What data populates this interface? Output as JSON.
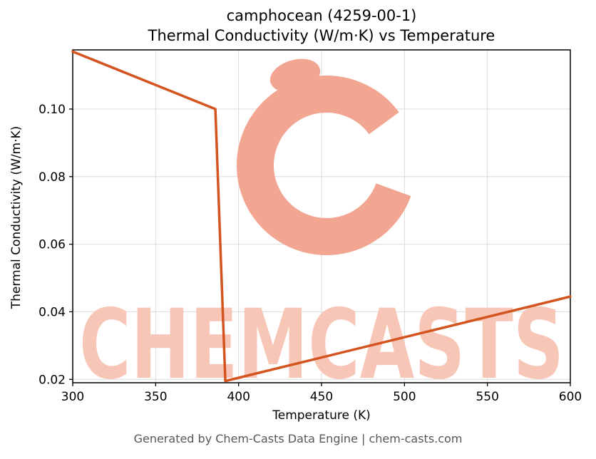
{
  "page": {
    "background": "#ffffff"
  },
  "footer": {
    "text": "Generated by Chem-Casts Data Engine | chem-casts.com"
  },
  "watermark": {
    "text": "CHEMCASTS",
    "logo": "c-swirl-logo",
    "text_color": "#f7c6b7",
    "logo_color": "#f2a691"
  },
  "chart_data": {
    "type": "line",
    "title_line1": "camphocean (4259-00-1)",
    "title_line2": "Thermal Conductivity (W/m·K) vs Temperature",
    "xlabel": "Temperature (K)",
    "ylabel": "Thermal Conductivity (W/m·K)",
    "xlim": [
      300,
      600
    ],
    "ylim": [
      0.019,
      0.1175
    ],
    "xticks": [
      300,
      350,
      400,
      450,
      500,
      550,
      600
    ],
    "yticks": [
      0.02,
      0.04,
      0.06,
      0.08,
      0.1
    ],
    "ytick_labels": [
      "0.02",
      "0.04",
      "0.06",
      "0.08",
      "0.10"
    ],
    "grid": true,
    "grid_color": "#dbdbdb",
    "line_color": "#d3541e",
    "line_width": 3.5,
    "legend": "none",
    "series": [
      {
        "name": "thermal_conductivity",
        "x": [
          300,
          386,
          392,
          600
        ],
        "y": [
          0.117,
          0.1,
          0.0195,
          0.0445
        ]
      }
    ]
  }
}
